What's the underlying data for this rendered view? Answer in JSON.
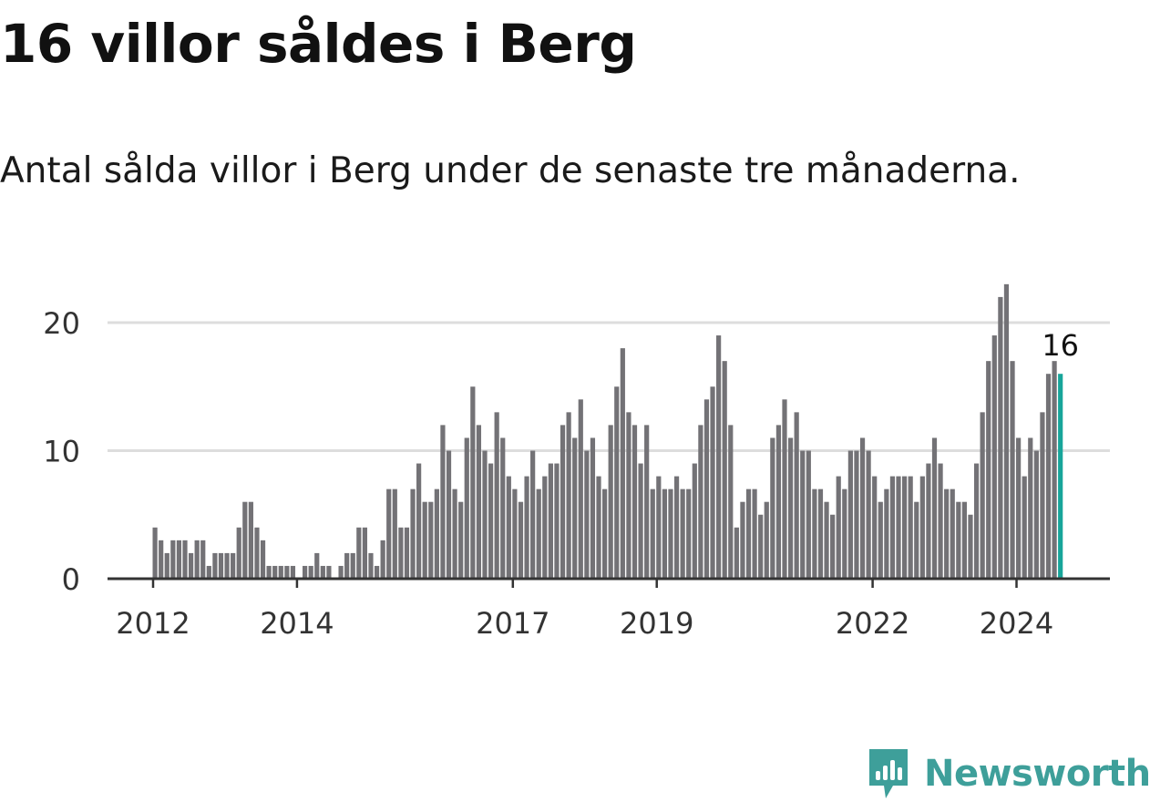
{
  "title": "16 villor såldes i Berg",
  "subtitle": "Antal sålda villor i Berg under de senaste tre månaderna.",
  "brand": {
    "name": "Newsworthy",
    "icon": "newsworthy-logo-icon",
    "color": "#3e9f9a"
  },
  "colors": {
    "bar": "#737276",
    "highlight": "#17a59a",
    "grid": "#dddddd",
    "axis": "#333333"
  },
  "chart_data": {
    "type": "bar",
    "title": "16 villor såldes i Berg",
    "xlabel": "",
    "ylabel": "",
    "ylim": [
      0,
      24
    ],
    "yticks": [
      0,
      10,
      20
    ],
    "grid": true,
    "legend": "none",
    "x_tick_labels": [
      "2012",
      "2014",
      "2017",
      "2019",
      "2022",
      "2024"
    ],
    "x_tick_months": [
      "2012-01",
      "2014-01",
      "2017-01",
      "2019-01",
      "2022-01",
      "2024-01"
    ],
    "first_month": "2012-01",
    "values": [
      4,
      3,
      2,
      3,
      3,
      3,
      2,
      3,
      3,
      1,
      2,
      2,
      2,
      2,
      4,
      6,
      6,
      4,
      3,
      1,
      1,
      1,
      1,
      1,
      0,
      1,
      1,
      2,
      1,
      1,
      0,
      1,
      2,
      2,
      4,
      4,
      2,
      1,
      3,
      7,
      7,
      4,
      4,
      7,
      9,
      6,
      6,
      7,
      12,
      10,
      7,
      6,
      11,
      15,
      12,
      10,
      9,
      13,
      11,
      8,
      7,
      6,
      8,
      10,
      7,
      8,
      9,
      9,
      12,
      13,
      11,
      14,
      10,
      11,
      8,
      7,
      12,
      15,
      18,
      13,
      12,
      9,
      12,
      7,
      8,
      7,
      7,
      8,
      7,
      7,
      9,
      12,
      14,
      15,
      19,
      17,
      12,
      4,
      6,
      7,
      7,
      5,
      6,
      11,
      12,
      14,
      11,
      13,
      10,
      10,
      7,
      7,
      6,
      5,
      8,
      7,
      10,
      10,
      11,
      10,
      8,
      6,
      7,
      8,
      8,
      8,
      8,
      6,
      8,
      9,
      11,
      9,
      7,
      7,
      6,
      6,
      5,
      9,
      13,
      17,
      19,
      22,
      23,
      17,
      11,
      8,
      11,
      10,
      13,
      16,
      17,
      16
    ],
    "highlight_index": 151,
    "annotation": {
      "text": "16",
      "index": 151
    }
  }
}
